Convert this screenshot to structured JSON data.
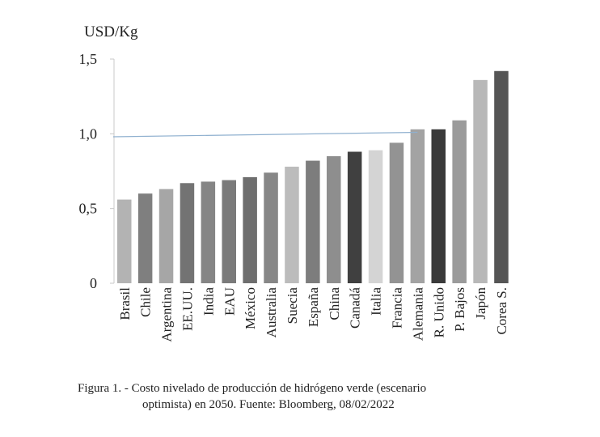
{
  "chart_data": {
    "type": "bar",
    "ylabel": "USD/Kg",
    "xlabel": "",
    "ylim": [
      0,
      1.5
    ],
    "yticks": [
      {
        "value": 0,
        "label": "0"
      },
      {
        "value": 0.5,
        "label": "0,5"
      },
      {
        "value": 1.0,
        "label": "1,0"
      },
      {
        "value": 1.5,
        "label": "1,5"
      }
    ],
    "categories": [
      "Brasil",
      "Chile",
      "Argentina",
      "EE.UU.",
      "India",
      "EAU",
      "México",
      "Australia",
      "Suecia",
      "España",
      "China",
      "Canadá",
      "Italia",
      "Francia",
      "Alemania",
      "R. Unido",
      "P. Bajos",
      "Japón",
      "Corea S."
    ],
    "values": [
      0.56,
      0.6,
      0.63,
      0.67,
      0.68,
      0.69,
      0.71,
      0.74,
      0.78,
      0.82,
      0.85,
      0.88,
      0.89,
      0.94,
      1.03,
      1.03,
      1.09,
      1.36,
      1.42
    ],
    "bar_colors": [
      "#b3b3b3",
      "#7f7f7f",
      "#a6a6a6",
      "#737373",
      "#858585",
      "#7a7a7a",
      "#6e6e6e",
      "#878787",
      "#bcbcbc",
      "#7d7d7d",
      "#8e8e8e",
      "#404040",
      "#d4d4d4",
      "#939393",
      "#a3a3a3",
      "#3a3a3a",
      "#9b9b9b",
      "#b8b8b8",
      "#555555"
    ],
    "reference_line": {
      "x_start": "Brasil",
      "x_end": "Alemania",
      "y_start": 0.98,
      "y_end": 1.01,
      "color": "#8fb0cf"
    },
    "grid": false,
    "legend": "none"
  },
  "caption": {
    "line1": "Figura 1.  - Costo nivelado de producción de hidrógeno verde (escenario",
    "line2": "optimista) en 2050. Fuente: Bloomberg, 08/02/2022"
  }
}
